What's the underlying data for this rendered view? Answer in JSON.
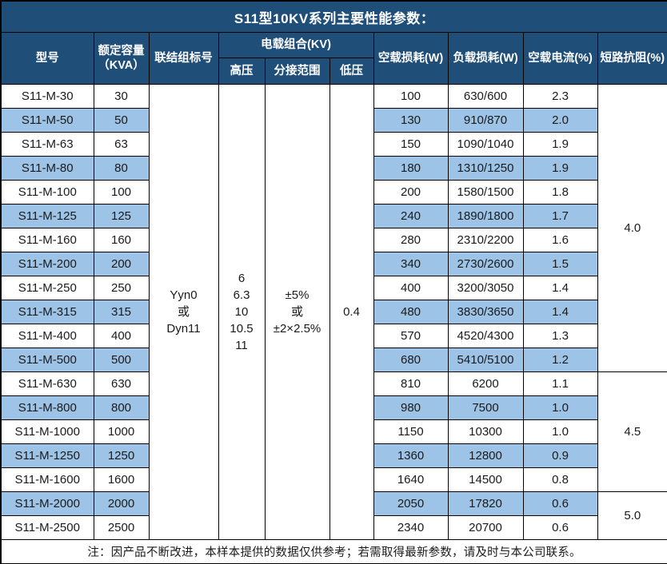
{
  "title": "S11型10KV系列主要性能参数：",
  "colors": {
    "header_bg": "#1F4E79",
    "header_text": "#FFFFFF",
    "stripe_bg": "#9DC3E6",
    "row_bg": "#FFFFFF",
    "border": "#000000"
  },
  "table": {
    "headers": {
      "model": "型号",
      "capacity_line1": "额定容量",
      "capacity_line2": "（KVA）",
      "connection": "联结组标号",
      "voltage_group": "电载组合(KV)",
      "hv": "高压",
      "tap_range": "分接范围",
      "lv": "低压",
      "no_load_loss": "空载损耗(W)",
      "load_loss": "负载损耗(W)",
      "no_load_current": "空载电流(%)",
      "impedance": "短路抗阻(%)"
    },
    "merged": {
      "connection_lines": [
        "Yyn0",
        "或",
        "Dyn11"
      ],
      "hv_lines": [
        "6",
        "6.3",
        "10",
        "10.5",
        "11"
      ],
      "tap_lines": [
        "±5%",
        "或",
        "±2×2.5%"
      ],
      "lv_lines": [
        "0.4"
      ]
    },
    "impedance_groups": [
      {
        "value": "4.0",
        "rows": 12
      },
      {
        "value": "4.5",
        "rows": 5
      },
      {
        "value": "5.0",
        "rows": 2
      }
    ],
    "rows": [
      {
        "model": "S11-M-30",
        "capacity": "30",
        "no_load_loss": "100",
        "load_loss": "630/600",
        "no_load_current": "2.3"
      },
      {
        "model": "S11-M-50",
        "capacity": "50",
        "no_load_loss": "130",
        "load_loss": "910/870",
        "no_load_current": "2.0"
      },
      {
        "model": "S11-M-63",
        "capacity": "63",
        "no_load_loss": "150",
        "load_loss": "1090/1040",
        "no_load_current": "1.9"
      },
      {
        "model": "S11-M-80",
        "capacity": "80",
        "no_load_loss": "180",
        "load_loss": "1310/1250",
        "no_load_current": "1.9"
      },
      {
        "model": "S11-M-100",
        "capacity": "100",
        "no_load_loss": "200",
        "load_loss": "1580/1500",
        "no_load_current": "1.8"
      },
      {
        "model": "S11-M-125",
        "capacity": "125",
        "no_load_loss": "240",
        "load_loss": "1890/1800",
        "no_load_current": "1.7"
      },
      {
        "model": "S11-M-160",
        "capacity": "160",
        "no_load_loss": "280",
        "load_loss": "2310/2200",
        "no_load_current": "1.6"
      },
      {
        "model": "S11-M-200",
        "capacity": "200",
        "no_load_loss": "340",
        "load_loss": "2730/2600",
        "no_load_current": "1.5"
      },
      {
        "model": "S11-M-250",
        "capacity": "250",
        "no_load_loss": "400",
        "load_loss": "3200/3050",
        "no_load_current": "1.4"
      },
      {
        "model": "S11-M-315",
        "capacity": "315",
        "no_load_loss": "480",
        "load_loss": "3830/3650",
        "no_load_current": "1.4"
      },
      {
        "model": "S11-M-400",
        "capacity": "400",
        "no_load_loss": "570",
        "load_loss": "4520/4300",
        "no_load_current": "1.3"
      },
      {
        "model": "S11-M-500",
        "capacity": "500",
        "no_load_loss": "680",
        "load_loss": "5410/5100",
        "no_load_current": "1.2"
      },
      {
        "model": "S11-M-630",
        "capacity": "630",
        "no_load_loss": "810",
        "load_loss": "6200",
        "no_load_current": "1.1"
      },
      {
        "model": "S11-M-800",
        "capacity": "800",
        "no_load_loss": "980",
        "load_loss": "7500",
        "no_load_current": "1.0"
      },
      {
        "model": "S11-M-1000",
        "capacity": "1000",
        "no_load_loss": "1150",
        "load_loss": "10300",
        "no_load_current": "1.0"
      },
      {
        "model": "S11-M-1250",
        "capacity": "1250",
        "no_load_loss": "1360",
        "load_loss": "12800",
        "no_load_current": "0.9"
      },
      {
        "model": "S11-M-1600",
        "capacity": "1600",
        "no_load_loss": "1640",
        "load_loss": "14500",
        "no_load_current": "0.8"
      },
      {
        "model": "S11-M-2000",
        "capacity": "2000",
        "no_load_loss": "2050",
        "load_loss": "17820",
        "no_load_current": "0.6"
      },
      {
        "model": "S11-M-2500",
        "capacity": "2500",
        "no_load_loss": "2340",
        "load_loss": "20700",
        "no_load_current": "0.6"
      }
    ]
  },
  "footer_note": "注：因产品不断改进，本样本提供的数据仅供参考；若需取得最新参数，请及时与本公司联系。"
}
